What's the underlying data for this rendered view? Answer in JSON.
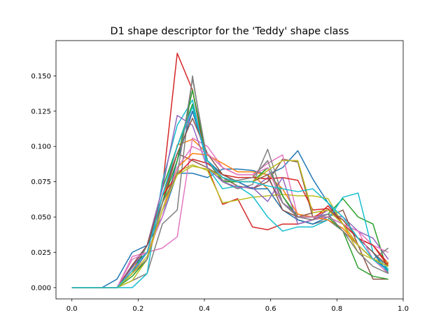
{
  "chart_data": {
    "type": "line",
    "title": "D1 shape descriptor for the 'Teddy' shape class",
    "xlabel": "",
    "ylabel": "",
    "xlim": [
      -0.048,
      1.0
    ],
    "ylim": [
      -0.008,
      0.175
    ],
    "grid": false,
    "legend": "none",
    "x_ticks": [
      0.0,
      0.2,
      0.4,
      0.6,
      0.8,
      1.0
    ],
    "x_tick_labels": [
      "0.0",
      "0.2",
      "0.4",
      "0.6",
      "0.8",
      "1.0"
    ],
    "y_ticks": [
      0.0,
      0.025,
      0.05,
      0.075,
      0.1,
      0.125,
      0.15
    ],
    "y_tick_labels": [
      "0.000",
      "0.025",
      "0.050",
      "0.075",
      "0.100",
      "0.125",
      "0.150"
    ],
    "x": [
      0.0,
      0.045,
      0.091,
      0.136,
      0.182,
      0.227,
      0.273,
      0.318,
      0.364,
      0.409,
      0.455,
      0.5,
      0.545,
      0.591,
      0.636,
      0.682,
      0.727,
      0.773,
      0.818,
      0.864,
      0.909,
      0.955
    ],
    "series": [
      {
        "color": "#1f77b4",
        "values": [
          0.0,
          0.0,
          0.0,
          0.006,
          0.025,
          0.03,
          0.05,
          0.081,
          0.081,
          0.078,
          0.084,
          0.084,
          0.083,
          0.08,
          0.085,
          0.097,
          0.077,
          0.06,
          0.045,
          0.03,
          0.02,
          0.013
        ]
      },
      {
        "color": "#ff7f0e",
        "values": [
          0.0,
          0.0,
          0.0,
          0.0,
          0.012,
          0.03,
          0.06,
          0.101,
          0.105,
          0.095,
          0.085,
          0.08,
          0.08,
          0.07,
          0.055,
          0.05,
          0.05,
          0.055,
          0.048,
          0.035,
          0.03,
          0.016
        ]
      },
      {
        "color": "#2ca02c",
        "values": [
          0.0,
          0.0,
          0.0,
          0.0,
          0.01,
          0.03,
          0.07,
          0.1,
          0.13,
          0.09,
          0.075,
          0.075,
          0.075,
          0.085,
          0.06,
          0.05,
          0.05,
          0.052,
          0.063,
          0.05,
          0.045,
          0.01
        ]
      },
      {
        "color": "#d62728",
        "values": [
          0.0,
          0.0,
          0.0,
          0.0,
          0.015,
          0.03,
          0.07,
          0.166,
          0.14,
          0.085,
          0.059,
          0.063,
          0.043,
          0.041,
          0.045,
          0.045,
          0.048,
          0.058,
          0.045,
          0.035,
          0.03,
          0.017
        ]
      },
      {
        "color": "#9467bd",
        "values": [
          0.0,
          0.0,
          0.0,
          0.0,
          0.01,
          0.025,
          0.065,
          0.1,
          0.125,
          0.09,
          0.08,
          0.075,
          0.07,
          0.078,
          0.06,
          0.052,
          0.05,
          0.052,
          0.05,
          0.04,
          0.035,
          0.02
        ]
      },
      {
        "color": "#8c564b",
        "values": [
          0.0,
          0.0,
          0.0,
          0.0,
          0.015,
          0.03,
          0.06,
          0.095,
          0.09,
          0.085,
          0.078,
          0.072,
          0.07,
          0.075,
          0.091,
          0.089,
          0.05,
          0.05,
          0.055,
          0.03,
          0.006,
          0.006
        ]
      },
      {
        "color": "#e377c2",
        "values": [
          0.0,
          0.0,
          0.0,
          0.0,
          0.022,
          0.025,
          0.028,
          0.036,
          0.106,
          0.1,
          0.085,
          0.08,
          0.08,
          0.088,
          0.094,
          0.05,
          0.048,
          0.05,
          0.045,
          0.04,
          0.03,
          0.025
        ]
      },
      {
        "color": "#7f7f7f",
        "values": [
          0.0,
          0.0,
          0.0,
          0.0,
          0.005,
          0.01,
          0.045,
          0.055,
          0.15,
          0.085,
          0.075,
          0.07,
          0.073,
          0.098,
          0.065,
          0.048,
          0.045,
          0.048,
          0.04,
          0.03,
          0.02,
          0.028
        ]
      },
      {
        "color": "#bcbd22",
        "values": [
          0.0,
          0.0,
          0.0,
          0.0,
          0.005,
          0.02,
          0.06,
          0.082,
          0.087,
          0.083,
          0.06,
          0.062,
          0.064,
          0.065,
          0.066,
          0.065,
          0.065,
          0.063,
          0.045,
          0.025,
          0.02,
          0.018
        ]
      },
      {
        "color": "#17becf",
        "values": [
          0.0,
          0.0,
          0.0,
          0.0,
          0.0,
          0.01,
          0.075,
          0.115,
          0.133,
          0.085,
          0.07,
          0.072,
          0.065,
          0.05,
          0.04,
          0.043,
          0.043,
          0.048,
          0.064,
          0.067,
          0.025,
          0.013
        ]
      },
      {
        "color": "#1f77b4",
        "values": [
          0.0,
          0.0,
          0.0,
          0.0,
          0.015,
          0.025,
          0.05,
          0.09,
          0.125,
          0.09,
          0.08,
          0.075,
          0.07,
          0.07,
          0.055,
          0.048,
          0.045,
          0.05,
          0.045,
          0.035,
          0.025,
          0.01
        ]
      },
      {
        "color": "#ff7f0e",
        "values": [
          0.0,
          0.0,
          0.0,
          0.0,
          0.01,
          0.02,
          0.055,
          0.085,
          0.095,
          0.094,
          0.088,
          0.082,
          0.082,
          0.08,
          0.07,
          0.052,
          0.05,
          0.048,
          0.042,
          0.03,
          0.02,
          0.015
        ]
      },
      {
        "color": "#2ca02c",
        "values": [
          0.0,
          0.0,
          0.0,
          0.0,
          0.008,
          0.02,
          0.06,
          0.09,
          0.14,
          0.09,
          0.075,
          0.075,
          0.075,
          0.085,
          0.065,
          0.05,
          0.05,
          0.05,
          0.04,
          0.014,
          0.008,
          0.006
        ]
      },
      {
        "color": "#d62728",
        "values": [
          0.0,
          0.0,
          0.0,
          0.0,
          0.012,
          0.025,
          0.065,
          0.08,
          0.091,
          0.088,
          0.08,
          0.078,
          0.078,
          0.077,
          0.078,
          0.076,
          0.055,
          0.056,
          0.045,
          0.035,
          0.03,
          0.015
        ]
      },
      {
        "color": "#9467bd",
        "values": [
          0.0,
          0.0,
          0.0,
          0.0,
          0.014,
          0.03,
          0.07,
          0.122,
          0.115,
          0.085,
          0.075,
          0.071,
          0.071,
          0.061,
          0.078,
          0.045,
          0.048,
          0.055,
          0.045,
          0.03,
          0.02,
          0.012
        ]
      },
      {
        "color": "#8c564b",
        "values": [
          0.0,
          0.0,
          0.0,
          0.0,
          0.016,
          0.03,
          0.065,
          0.095,
          0.12,
          0.095,
          0.08,
          0.075,
          0.075,
          0.08,
          0.055,
          0.05,
          0.053,
          0.055,
          0.048,
          0.035,
          0.025,
          0.015
        ]
      },
      {
        "color": "#e377c2",
        "values": [
          0.0,
          0.0,
          0.0,
          0.0,
          0.02,
          0.025,
          0.05,
          0.085,
          0.1,
          0.095,
          0.085,
          0.08,
          0.08,
          0.085,
          0.06,
          0.05,
          0.05,
          0.05,
          0.045,
          0.04,
          0.02,
          0.01
        ]
      },
      {
        "color": "#7f7f7f",
        "values": [
          0.0,
          0.0,
          0.0,
          0.0,
          0.01,
          0.02,
          0.06,
          0.08,
          0.148,
          0.09,
          0.076,
          0.076,
          0.078,
          0.09,
          0.06,
          0.05,
          0.048,
          0.052,
          0.04,
          0.025,
          0.015,
          0.01
        ]
      },
      {
        "color": "#bcbd22",
        "values": [
          0.0,
          0.0,
          0.0,
          0.0,
          0.01,
          0.022,
          0.055,
          0.08,
          0.086,
          0.084,
          0.078,
          0.075,
          0.075,
          0.083,
          0.09,
          0.09,
          0.053,
          0.055,
          0.045,
          0.03,
          0.02,
          0.015
        ]
      },
      {
        "color": "#17becf",
        "values": [
          0.0,
          0.0,
          0.0,
          0.0,
          0.012,
          0.025,
          0.065,
          0.1,
          0.128,
          0.09,
          0.078,
          0.075,
          0.075,
          0.072,
          0.07,
          0.068,
          0.07,
          0.06,
          0.05,
          0.035,
          0.02,
          0.012
        ]
      }
    ]
  }
}
